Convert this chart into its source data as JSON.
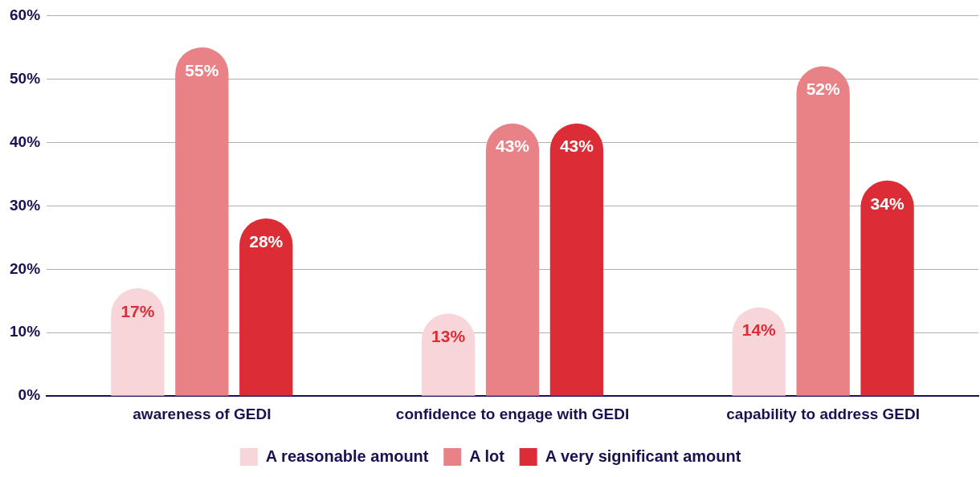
{
  "chart_data": {
    "type": "bar",
    "categories": [
      "awareness of GEDI",
      "confidence to engage with GEDI",
      "capability to address GEDI"
    ],
    "series": [
      {
        "name": "A reasonable amount",
        "color": "#f7d5d8",
        "values": [
          17,
          13,
          14
        ]
      },
      {
        "name": "A lot",
        "color": "#e98286",
        "values": [
          55,
          43,
          52
        ]
      },
      {
        "name": "A very significant amount",
        "color": "#dc2d37",
        "values": [
          28,
          43,
          34
        ]
      }
    ],
    "ylim": [
      0,
      60
    ],
    "yticks": [
      {
        "value": 0,
        "label": "0%"
      },
      {
        "value": 10,
        "label": "10%"
      },
      {
        "value": 20,
        "label": "20%"
      },
      {
        "value": 30,
        "label": "30%"
      },
      {
        "value": 40,
        "label": "40%"
      },
      {
        "value": 50,
        "label": "50%"
      },
      {
        "value": 60,
        "label": "60%"
      }
    ],
    "value_labels": [
      [
        "17%",
        "13%",
        "14%"
      ],
      [
        "55%",
        "43%",
        "52%"
      ],
      [
        "28%",
        "43%",
        "34%"
      ]
    ],
    "grid": "y",
    "legend": "bottom"
  }
}
